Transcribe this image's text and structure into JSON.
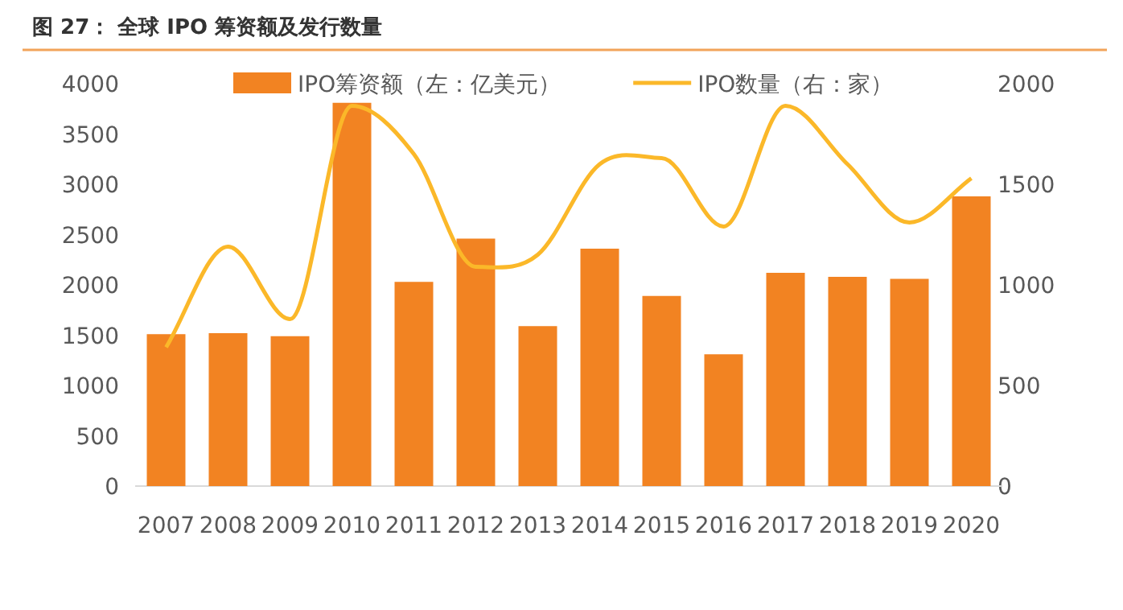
{
  "chart_data": {
    "type": "bar",
    "title": "图 27：  全球 IPO 筹资额及发行数量",
    "categories": [
      "2007",
      "2008",
      "2009",
      "2010",
      "2011",
      "2012",
      "2013",
      "2014",
      "2015",
      "2016",
      "2017",
      "2018",
      "2019",
      "2020"
    ],
    "series": [
      {
        "name": "IPO筹资额（左：亿美元）",
        "color": "#f28322",
        "values": [
          1510,
          1520,
          1490,
          3810,
          2030,
          2460,
          1590,
          2360,
          1890,
          1310,
          2120,
          2080,
          2060,
          2880
        ]
      },
      {
        "name": "IPO数量（右：家）",
        "type": "line",
        "axis": "y2",
        "color": "#fbb829",
        "values": [
          690,
          1190,
          830,
          1890,
          1650,
          1090,
          1150,
          1600,
          1630,
          1290,
          1890,
          1600,
          1310,
          1530
        ]
      }
    ],
    "ylim": [
      0,
      4000
    ],
    "yticks": [
      0,
      500,
      1000,
      1500,
      2000,
      2500,
      3000,
      3500,
      4000
    ],
    "y2lim": [
      0,
      2000
    ],
    "y2ticks": [
      0,
      500,
      1000,
      1500,
      2000
    ],
    "legend": "top",
    "grid": false
  }
}
